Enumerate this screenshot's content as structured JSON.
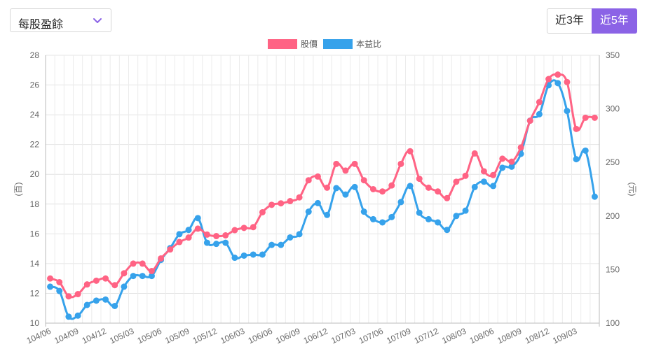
{
  "controls": {
    "metric_select": {
      "value": "每股盈餘",
      "icon": "chevron-down-icon",
      "icon_color": "#8b63e6"
    },
    "ranges": [
      {
        "label": "近3年",
        "active": false
      },
      {
        "label": "近5年",
        "active": true
      }
    ],
    "accent_color": "#8b63e6"
  },
  "chart_data": {
    "type": "line",
    "categories": [
      "104/06",
      "104/07",
      "104/08",
      "104/09",
      "104/10",
      "104/11",
      "104/12",
      "105/01",
      "105/02",
      "105/03",
      "105/04",
      "105/05",
      "105/06",
      "105/07",
      "105/08",
      "105/09",
      "105/10",
      "105/11",
      "105/12",
      "106/01",
      "106/02",
      "106/03",
      "106/04",
      "106/05",
      "106/06",
      "106/07",
      "106/08",
      "106/09",
      "106/10",
      "106/11",
      "106/12",
      "107/01",
      "107/02",
      "107/03",
      "107/04",
      "107/05",
      "107/06",
      "107/07",
      "107/08",
      "107/09",
      "107/10",
      "107/11",
      "107/12",
      "108/01",
      "108/02",
      "108/03",
      "108/04",
      "108/05",
      "108/06",
      "108/07",
      "108/08",
      "108/09",
      "108/10",
      "108/11",
      "108/12",
      "109/01",
      "109/02",
      "109/03",
      "109/04",
      "109/05"
    ],
    "tick_labels": [
      "104/06",
      "104/09",
      "104/12",
      "105/03",
      "105/06",
      "105/09",
      "105/12",
      "106/03",
      "106/06",
      "106/09",
      "106/12",
      "107/03",
      "107/06",
      "107/09",
      "107/12",
      "108/03",
      "108/06",
      "108/09",
      "108/12",
      "109/03"
    ],
    "series": [
      {
        "name": "股價",
        "color": "#ff6384",
        "axis": "left",
        "values": [
          13.0,
          12.75,
          11.8,
          11.95,
          12.6,
          12.85,
          13.0,
          12.55,
          13.35,
          14.0,
          14.0,
          13.5,
          14.35,
          14.95,
          15.45,
          15.75,
          16.35,
          15.95,
          15.85,
          15.9,
          16.25,
          16.4,
          16.45,
          17.45,
          17.95,
          18.05,
          18.2,
          18.45,
          19.6,
          19.85,
          19.1,
          20.7,
          20.25,
          20.7,
          19.6,
          19.0,
          18.85,
          19.25,
          20.7,
          21.55,
          19.7,
          19.1,
          18.85,
          18.4,
          19.5,
          19.9,
          21.4,
          20.2,
          19.95,
          21.05,
          20.85,
          21.8,
          23.6,
          24.85,
          26.4,
          26.7,
          26.2,
          23.05,
          23.8,
          23.8
        ]
      },
      {
        "name": "本益比",
        "color": "#36a2eb",
        "axis": "right",
        "values": [
          134,
          130,
          106,
          107,
          117,
          121,
          122,
          116,
          134,
          144,
          144,
          144,
          159,
          170,
          183,
          187,
          198,
          175,
          174,
          175,
          161,
          163,
          164,
          164,
          173,
          173,
          180,
          183,
          204,
          212,
          201,
          226,
          220,
          227,
          204,
          197,
          194,
          199,
          213,
          228,
          203,
          197,
          194,
          187,
          200,
          205,
          227,
          232,
          228,
          245,
          246,
          258,
          289,
          295,
          322,
          324,
          298,
          253,
          261,
          218
        ]
      }
    ],
    "left_axis": {
      "title": "(百)",
      "ylim": [
        10,
        28
      ],
      "ticks": [
        10,
        12,
        14,
        16,
        18,
        20,
        22,
        24,
        26,
        28
      ]
    },
    "right_axis": {
      "title": "(元)",
      "ylim": [
        100,
        350
      ],
      "ticks": [
        100,
        150,
        200,
        250,
        300,
        350
      ]
    },
    "legend": {
      "position": "top-center"
    },
    "grid": true
  }
}
